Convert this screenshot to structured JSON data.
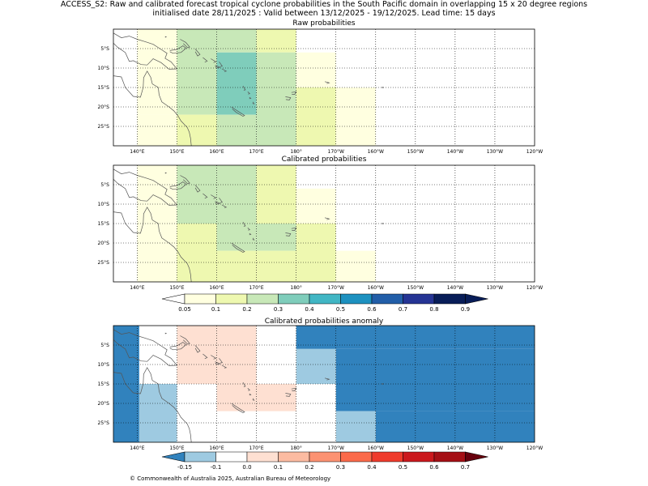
{
  "header": {
    "line1": "ACCESS_S2: Raw and calibrated forecast tropical cyclone probabilities in the South Pacific domain in overlapping 15 x 20 degree regions",
    "line2": "initialised date 28/11/2025 :  Valid between 13/12/2025 - 19/12/2025. Lead time: 15 days"
  },
  "panels": {
    "raw": {
      "title": "Raw probabilities"
    },
    "cal": {
      "title": "Calibrated probabilities"
    },
    "anom": {
      "title": "Calibrated probabilities anomaly"
    }
  },
  "axes": {
    "lon_ticks": [
      "140°E",
      "150°E",
      "160°E",
      "170°E",
      "180°",
      "170°W",
      "160°W",
      "150°W",
      "140°W",
      "130°W",
      "120°W"
    ],
    "lat_ticks": [
      "5°S",
      "10°S",
      "15°S",
      "20°S",
      "25°S"
    ]
  },
  "colorbars": {
    "prob": {
      "labels": [
        "0.05",
        "0.1",
        "0.2",
        "0.3",
        "0.4",
        "0.5",
        "0.6",
        "0.7",
        "0.8",
        "0.9"
      ],
      "colors": [
        "#ffffe0",
        "#eef8b0",
        "#c8e8b8",
        "#7fcdbb",
        "#41b6c4",
        "#1d91c0",
        "#225ea8",
        "#253494",
        "#081d58"
      ],
      "under": "#ffffff",
      "over": "#081d58"
    },
    "anom": {
      "labels": [
        "-0.15",
        "-0.1",
        "0.0",
        "0.1",
        "0.2",
        "0.3",
        "0.4",
        "0.5",
        "0.6",
        "0.7"
      ],
      "colors": [
        "#9ecae1",
        "#ffffff",
        "#fee0d2",
        "#fcbba1",
        "#fc9272",
        "#fb6a4a",
        "#ef3b2c",
        "#cb181d",
        "#a50f15"
      ],
      "under": "#3182bd",
      "over": "#67000d"
    }
  },
  "map_data": {
    "lon_range": [
      134,
      240
    ],
    "lat_range": [
      0,
      -30
    ],
    "raw": [
      {
        "lon": [
          140,
          150
        ],
        "lat": [
          0,
          -22
        ],
        "value": 0.05,
        "color": "#ffffe0"
      },
      {
        "lon": [
          140,
          150
        ],
        "lat": [
          -22,
          -30
        ],
        "value": 0.05,
        "color": "#ffffe0"
      },
      {
        "lon": [
          150,
          160
        ],
        "lat": [
          0,
          -22
        ],
        "value": 0.2,
        "color": "#c8e8b8"
      },
      {
        "lon": [
          150,
          160
        ],
        "lat": [
          -22,
          -30
        ],
        "value": 0.1,
        "color": "#eef8b0"
      },
      {
        "lon": [
          160,
          170
        ],
        "lat": [
          0,
          -6
        ],
        "value": 0.2,
        "color": "#c8e8b8"
      },
      {
        "lon": [
          160,
          170
        ],
        "lat": [
          -6,
          -22
        ],
        "value": 0.3,
        "color": "#7fcdbb"
      },
      {
        "lon": [
          160,
          170
        ],
        "lat": [
          -22,
          -30
        ],
        "value": 0.2,
        "color": "#c8e8b8"
      },
      {
        "lon": [
          170,
          180
        ],
        "lat": [
          0,
          -6
        ],
        "value": 0.1,
        "color": "#eef8b0"
      },
      {
        "lon": [
          170,
          180
        ],
        "lat": [
          -6,
          -30
        ],
        "value": 0.2,
        "color": "#c8e8b8"
      },
      {
        "lon": [
          180,
          190
        ],
        "lat": [
          -6,
          -15
        ],
        "value": 0.05,
        "color": "#ffffe0"
      },
      {
        "lon": [
          180,
          190
        ],
        "lat": [
          -15,
          -30
        ],
        "value": 0.1,
        "color": "#eef8b0"
      },
      {
        "lon": [
          190,
          200
        ],
        "lat": [
          -15,
          -30
        ],
        "value": 0.05,
        "color": "#ffffe0"
      }
    ],
    "calibrated": [
      {
        "lon": [
          140,
          150
        ],
        "lat": [
          0,
          -30
        ],
        "value": 0.05,
        "color": "#ffffe0"
      },
      {
        "lon": [
          150,
          160
        ],
        "lat": [
          0,
          -15
        ],
        "value": 0.2,
        "color": "#c8e8b8"
      },
      {
        "lon": [
          150,
          160
        ],
        "lat": [
          -15,
          -30
        ],
        "value": 0.1,
        "color": "#eef8b0"
      },
      {
        "lon": [
          160,
          170
        ],
        "lat": [
          0,
          -15
        ],
        "value": 0.2,
        "color": "#c8e8b8"
      },
      {
        "lon": [
          160,
          170
        ],
        "lat": [
          -15,
          -22
        ],
        "value": 0.2,
        "color": "#c8e8b8"
      },
      {
        "lon": [
          160,
          170
        ],
        "lat": [
          -22,
          -30
        ],
        "value": 0.1,
        "color": "#eef8b0"
      },
      {
        "lon": [
          170,
          180
        ],
        "lat": [
          0,
          -15
        ],
        "value": 0.1,
        "color": "#eef8b0"
      },
      {
        "lon": [
          170,
          180
        ],
        "lat": [
          -15,
          -22
        ],
        "value": 0.2,
        "color": "#c8e8b8"
      },
      {
        "lon": [
          170,
          180
        ],
        "lat": [
          -22,
          -30
        ],
        "value": 0.1,
        "color": "#eef8b0"
      },
      {
        "lon": [
          180,
          190
        ],
        "lat": [
          -6,
          -15
        ],
        "value": 0.05,
        "color": "#ffffe0"
      },
      {
        "lon": [
          180,
          190
        ],
        "lat": [
          -15,
          -30
        ],
        "value": 0.1,
        "color": "#eef8b0"
      },
      {
        "lon": [
          190,
          200
        ],
        "lat": [
          -22,
          -30
        ],
        "value": 0.05,
        "color": "#ffffe0"
      }
    ],
    "anomaly": [
      {
        "lon": [
          134,
          140.5
        ],
        "lat": [
          0,
          -30
        ],
        "value": -0.2,
        "color": "#3182bd"
      },
      {
        "lon": [
          140.5,
          150
        ],
        "lat": [
          -15,
          -30
        ],
        "value": -0.12,
        "color": "#9ecae1"
      },
      {
        "lon": [
          150,
          170
        ],
        "lat": [
          0,
          -15
        ],
        "value": 0.05,
        "color": "#fee0d2"
      },
      {
        "lon": [
          160,
          180
        ],
        "lat": [
          -15,
          -22
        ],
        "value": 0.05,
        "color": "#fee0d2"
      },
      {
        "lon": [
          180,
          240
        ],
        "lat": [
          0,
          -6
        ],
        "value": -0.2,
        "color": "#3182bd"
      },
      {
        "lon": [
          180,
          190
        ],
        "lat": [
          -6,
          -15
        ],
        "value": -0.12,
        "color": "#9ecae1"
      },
      {
        "lon": [
          190,
          240
        ],
        "lat": [
          -6,
          -22
        ],
        "value": -0.2,
        "color": "#3182bd"
      },
      {
        "lon": [
          190,
          200
        ],
        "lat": [
          -22,
          -30
        ],
        "value": -0.12,
        "color": "#9ecae1"
      },
      {
        "lon": [
          200,
          240
        ],
        "lat": [
          -22,
          -30
        ],
        "value": -0.2,
        "color": "#3182bd"
      }
    ]
  },
  "footer": "© Commonwealth of Australia 2025, Australian Bureau of Meteorology"
}
